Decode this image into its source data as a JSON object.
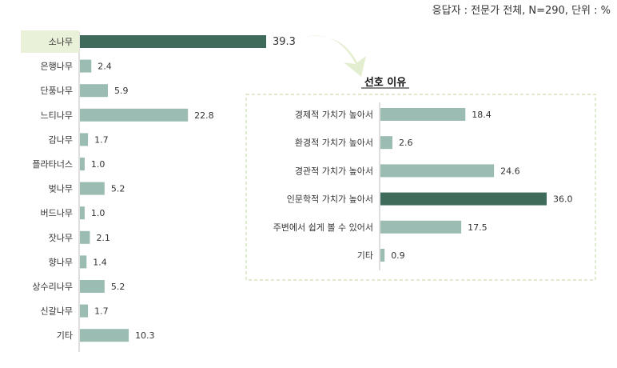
{
  "note": "응답자 : 전문가 전체, N=290, 단위 : %",
  "chart_data": [
    {
      "type": "bar",
      "orientation": "horizontal",
      "categories": [
        "소나무",
        "은행나무",
        "단풍나무",
        "느티나무",
        "감나무",
        "플라타너스",
        "벚나무",
        "버드나무",
        "잣나무",
        "향나무",
        "상수리나무",
        "신갈나무",
        "기타"
      ],
      "values": [
        39.3,
        2.4,
        5.9,
        22.8,
        1.7,
        1.0,
        5.2,
        1.0,
        2.1,
        1.4,
        5.2,
        1.7,
        10.3
      ],
      "highlight_index": 0,
      "colors": {
        "bar": "#9bbcb2",
        "highlight": "#3f6b5b",
        "label_bg": "#e9f1d8"
      }
    },
    {
      "type": "bar",
      "orientation": "horizontal",
      "title": "선호 이유",
      "categories": [
        "경제적 가치가 높아서",
        "환경적 가치가 높아서",
        "경관적 가치가 높아서",
        "인문학적 가치가 높아서",
        "주변에서 쉽게 볼 수 있어서",
        "기타"
      ],
      "values": [
        18.4,
        2.6,
        24.6,
        36.0,
        17.5,
        0.9
      ],
      "highlight_index": 3,
      "colors": {
        "bar": "#9bbcb2",
        "highlight": "#3f6b5b",
        "border": "#c9dcb0"
      }
    }
  ]
}
